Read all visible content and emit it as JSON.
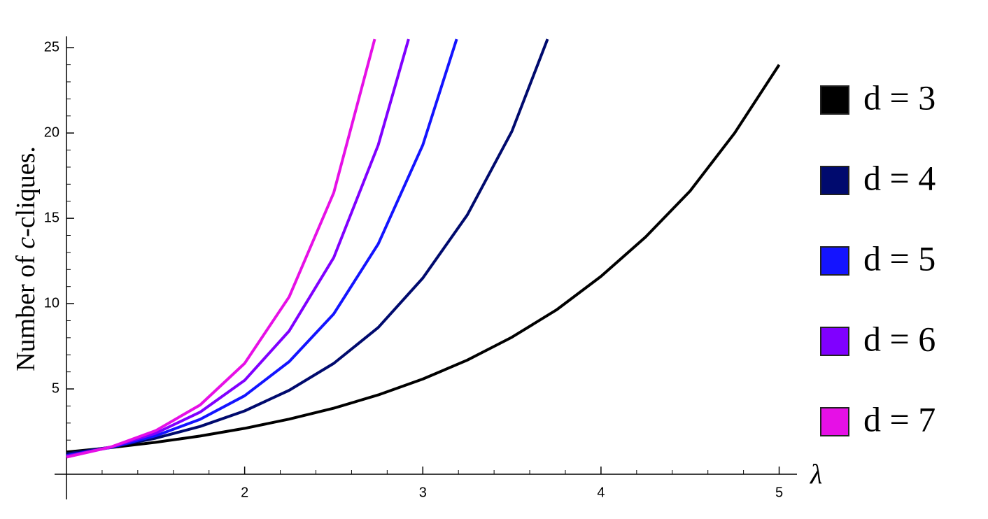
{
  "chart_data": {
    "type": "line",
    "x_label": "λ",
    "y_label": [
      "Number of ",
      "c",
      "-cliques."
    ],
    "xlim": [
      1,
      5.1
    ],
    "ylim": [
      0,
      25.5
    ],
    "xticks": [
      2,
      3,
      4,
      5
    ],
    "yticks": [
      5,
      10,
      15,
      20,
      25
    ],
    "xminorticks": [
      1.2,
      1.4,
      1.6,
      1.8,
      2.2,
      2.4,
      2.6,
      2.8,
      3.2,
      3.4,
      3.6,
      3.8,
      4.2,
      4.4,
      4.6,
      4.8
    ],
    "yminorticks": [
      1,
      2,
      3,
      4,
      6,
      7,
      8,
      9,
      11,
      12,
      13,
      14,
      16,
      17,
      18,
      19,
      21,
      22,
      23,
      24
    ],
    "series": [
      {
        "name": "d = 3",
        "color": "#000000",
        "x": [
          1,
          1.25,
          1.5,
          1.75,
          2,
          2.25,
          2.5,
          2.75,
          3,
          3.25,
          3.5,
          3.75,
          4,
          4.25,
          4.5,
          4.75,
          5
        ],
        "values": [
          1.3,
          1.56,
          1.87,
          2.24,
          2.69,
          3.23,
          3.87,
          4.65,
          5.58,
          6.69,
          8.03,
          9.63,
          11.6,
          13.9,
          16.6,
          20.0,
          24.0
        ]
      },
      {
        "name": "d = 4",
        "color": "#000a6e",
        "x": [
          1,
          1.25,
          1.5,
          1.75,
          2,
          2.25,
          2.5,
          2.75,
          3,
          3.25,
          3.5,
          3.7
        ],
        "values": [
          1.2,
          1.59,
          2.11,
          2.8,
          3.71,
          4.92,
          6.5,
          8.6,
          11.5,
          15.2,
          20.1,
          25.5
        ]
      },
      {
        "name": "d = 5",
        "color": "#1414ff",
        "x": [
          1,
          1.25,
          1.5,
          1.75,
          2,
          2.25,
          2.5,
          2.75,
          3,
          3.19
        ],
        "values": [
          1.1,
          1.57,
          2.25,
          3.22,
          4.6,
          6.6,
          9.4,
          13.5,
          19.3,
          25.5
        ]
      },
      {
        "name": "d = 6",
        "color": "#8000ff",
        "x": [
          1,
          1.25,
          1.5,
          1.75,
          2,
          2.25,
          2.5,
          2.75,
          2.92
        ],
        "values": [
          1.05,
          1.6,
          2.4,
          3.64,
          5.5,
          8.4,
          12.7,
          19.3,
          25.5
        ]
      },
      {
        "name": "d = 7",
        "color": "#e610e6",
        "x": [
          1,
          1.25,
          1.5,
          1.75,
          2,
          2.25,
          2.5,
          2.73
        ],
        "values": [
          1.0,
          1.6,
          2.55,
          4.06,
          6.5,
          10.4,
          16.5,
          25.5
        ]
      }
    ]
  }
}
